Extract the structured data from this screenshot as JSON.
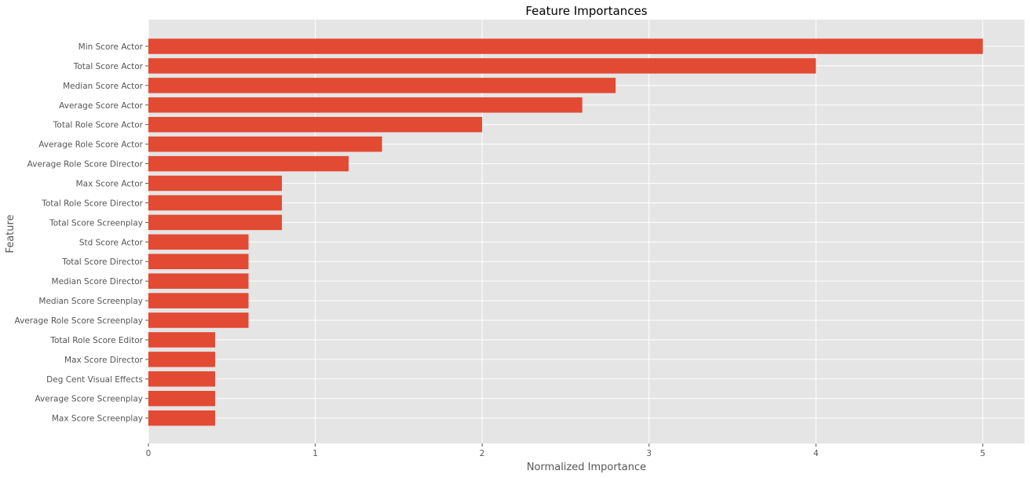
{
  "chart_data": {
    "type": "bar",
    "orientation": "horizontal",
    "title": "Feature Importances",
    "xlabel": "Normalized Importance",
    "ylabel": "Feature",
    "xlim": [
      0,
      5.25
    ],
    "xticks": [
      "0",
      "1",
      "2",
      "3",
      "4",
      "5"
    ],
    "grid": true,
    "categories": [
      "Min Score Actor",
      "Total Score Actor",
      "Median Score Actor",
      "Average Score Actor",
      "Total Role Score Actor",
      "Average Role Score Actor",
      "Average Role Score Director",
      "Max Score Actor",
      "Total Role Score Director",
      "Total Score Screenplay",
      "Std Score Actor",
      "Total Score Director",
      "Median Score Director",
      "Median Score Screenplay",
      "Average Role Score Screenplay",
      "Total Role Score Editor",
      "Max Score Director",
      "Deg Cent Visual Effects",
      "Average Score Screenplay",
      "Max Score Screenplay"
    ],
    "values": [
      5.0,
      4.0,
      2.8,
      2.6,
      2.0,
      1.4,
      1.2,
      0.8,
      0.8,
      0.8,
      0.6,
      0.6,
      0.6,
      0.6,
      0.6,
      0.4,
      0.4,
      0.4,
      0.4,
      0.4
    ],
    "colors": {
      "bar": "#e24a33",
      "plot_background": "#e5e5e5",
      "grid": "#ffffff"
    }
  }
}
